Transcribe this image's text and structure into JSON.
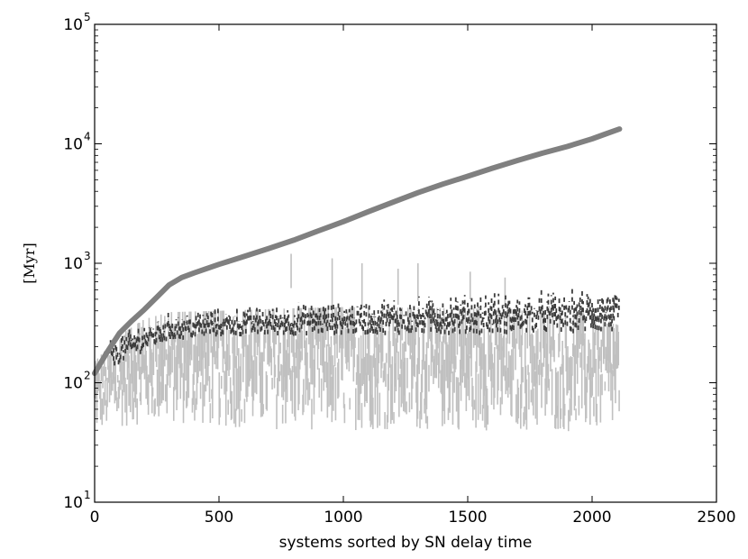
{
  "chart_data": {
    "type": "line",
    "title": "",
    "xlabel": "systems sorted by SN delay time",
    "ylabel": "[Myr]",
    "xlim": [
      0,
      2500
    ],
    "ylim": [
      10,
      100000
    ],
    "yscale": "log",
    "grid": false,
    "legend": "none",
    "x_ticks": [
      {
        "value": 0,
        "label": "0"
      },
      {
        "value": 500,
        "label": "500"
      },
      {
        "value": 1000,
        "label": "1000"
      },
      {
        "value": 1500,
        "label": "1500"
      },
      {
        "value": 2000,
        "label": "2000"
      },
      {
        "value": 2500,
        "label": "2500"
      }
    ],
    "y_ticks": [
      {
        "value": 10,
        "base": "10",
        "exp": "1"
      },
      {
        "value": 100,
        "base": "10",
        "exp": "2"
      },
      {
        "value": 1000,
        "base": "10",
        "exp": "3"
      },
      {
        "value": 10000,
        "base": "10",
        "exp": "4"
      },
      {
        "value": 100000,
        "base": "10",
        "exp": "5"
      }
    ],
    "series": [
      {
        "style": "thick-line",
        "color": "#808080",
        "x": [
          0,
          50,
          100,
          150,
          200,
          250,
          300,
          350,
          400,
          500,
          600,
          700,
          800,
          900,
          1000,
          1100,
          1200,
          1300,
          1400,
          1500,
          1600,
          1700,
          1800,
          1900,
          2000,
          2050,
          2110
        ],
        "y": [
          120,
          180,
          260,
          330,
          410,
          520,
          660,
          760,
          830,
          980,
          1140,
          1330,
          1560,
          1870,
          2230,
          2700,
          3250,
          3900,
          4600,
          5350,
          6250,
          7250,
          8350,
          9500,
          11000,
          12000,
          13300
        ]
      },
      {
        "style": "vertical-ranges-light",
        "color": "#c0c0c0",
        "x_range": [
          0,
          2110
        ],
        "envelope_x": [
          0,
          100,
          200,
          300,
          500,
          800,
          1000,
          1500,
          2000,
          2110
        ],
        "envelope_low": [
          38,
          42,
          45,
          45,
          42,
          40,
          40,
          40,
          38,
          40
        ],
        "envelope_high": [
          150,
          250,
          340,
          390,
          400,
          420,
          430,
          420,
          380,
          300
        ],
        "outliers": [
          {
            "x": 790,
            "y_low": 620,
            "y_high": 1200
          },
          {
            "x": 955,
            "y_low": 300,
            "y_high": 1100
          },
          {
            "x": 1075,
            "y_low": 420,
            "y_high": 1000
          },
          {
            "x": 1220,
            "y_low": 450,
            "y_high": 900
          },
          {
            "x": 1300,
            "y_low": 480,
            "y_high": 1000
          },
          {
            "x": 1510,
            "y_low": 500,
            "y_high": 850
          },
          {
            "x": 1650,
            "y_low": 430,
            "y_high": 760
          }
        ]
      },
      {
        "style": "vertical-ranges-dark",
        "color": "#3c3c3c",
        "x_range": [
          60,
          2110
        ],
        "envelope_x": [
          60,
          200,
          300,
          500,
          1000,
          1500,
          2000,
          2110
        ],
        "envelope_low": [
          130,
          180,
          220,
          240,
          250,
          250,
          260,
          260
        ],
        "envelope_high": [
          240,
          330,
          400,
          430,
          500,
          560,
          620,
          650
        ]
      }
    ]
  }
}
